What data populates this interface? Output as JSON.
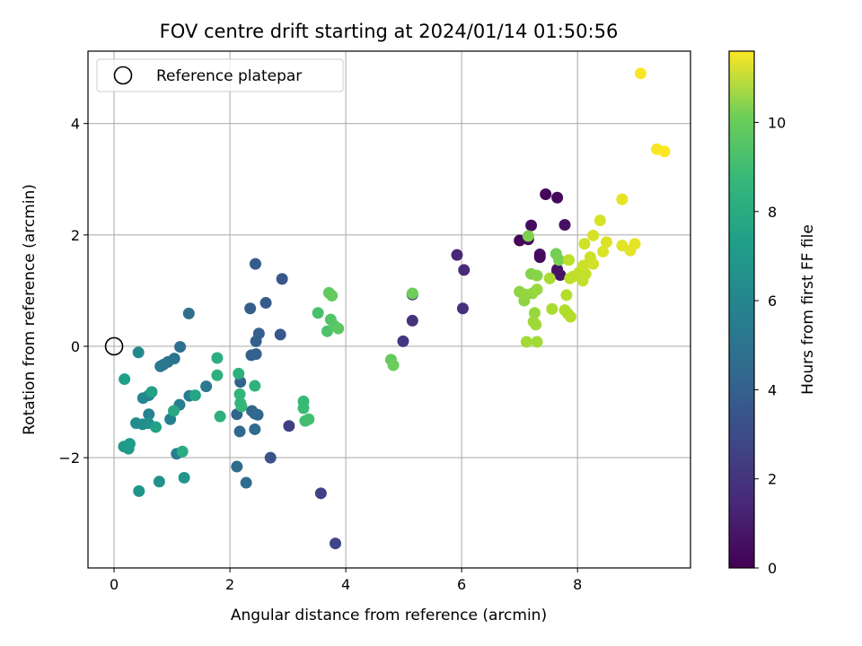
{
  "chart_data": {
    "type": "scatter",
    "title": "FOV centre drift starting at 2024/01/14 01:50:56",
    "xlabel": "Angular distance from reference (arcmin)",
    "ylabel": "Rotation from reference (arcmin)",
    "xlim": [
      -0.45,
      9.95
    ],
    "ylim": [
      -3.98,
      5.3
    ],
    "xticks": [
      0,
      2,
      4,
      6,
      8
    ],
    "yticks": [
      -2,
      0,
      2,
      4
    ],
    "xtick_labels": [
      "0",
      "2",
      "4",
      "6",
      "8"
    ],
    "ytick_labels": [
      "−2",
      "0",
      "2",
      "4"
    ],
    "grid": true,
    "legend": {
      "position": "top-left",
      "label": "Reference platepar"
    },
    "colorbar": {
      "label": "Hours from first FF file",
      "colormap": "viridis",
      "range": [
        0,
        11.6
      ],
      "ticks": [
        0,
        2,
        4,
        6,
        8,
        10
      ],
      "tick_labels": [
        "0",
        "2",
        "4",
        "6",
        "8",
        "10"
      ]
    },
    "reference_point": {
      "x": 0,
      "y": 0
    },
    "points": [
      {
        "x": 7.0,
        "y": 1.9,
        "c": 0.2
      },
      {
        "x": 7.15,
        "y": 1.92,
        "c": 0.3
      },
      {
        "x": 7.2,
        "y": 2.17,
        "c": 0.4
      },
      {
        "x": 7.35,
        "y": 1.65,
        "c": 0.5
      },
      {
        "x": 7.35,
        "y": 1.6,
        "c": 0.3
      },
      {
        "x": 7.45,
        "y": 2.73,
        "c": 0.2
      },
      {
        "x": 7.65,
        "y": 2.67,
        "c": 0.3
      },
      {
        "x": 7.78,
        "y": 2.18,
        "c": 0.5
      },
      {
        "x": 7.65,
        "y": 1.38,
        "c": 0.4
      },
      {
        "x": 7.7,
        "y": 1.28,
        "c": 0.6
      },
      {
        "x": 7.65,
        "y": 1.35,
        "c": 0.6
      },
      {
        "x": 5.92,
        "y": 1.64,
        "c": 1.3
      },
      {
        "x": 6.04,
        "y": 1.37,
        "c": 1.4
      },
      {
        "x": 6.02,
        "y": 0.68,
        "c": 1.6
      },
      {
        "x": 5.15,
        "y": 0.46,
        "c": 1.7
      },
      {
        "x": 5.15,
        "y": 0.93,
        "c": 1.8
      },
      {
        "x": 4.99,
        "y": 0.09,
        "c": 1.9
      },
      {
        "x": 3.02,
        "y": -1.43,
        "c": 2.2
      },
      {
        "x": 3.57,
        "y": -2.64,
        "c": 2.3
      },
      {
        "x": 3.82,
        "y": -3.54,
        "c": 2.4
      },
      {
        "x": 2.7,
        "y": -2.0,
        "c": 3.0
      },
      {
        "x": 2.9,
        "y": 1.21,
        "c": 3.1
      },
      {
        "x": 2.87,
        "y": 0.21,
        "c": 3.2
      },
      {
        "x": 2.44,
        "y": 1.48,
        "c": 3.3
      },
      {
        "x": 2.62,
        "y": 0.78,
        "c": 3.3
      },
      {
        "x": 2.35,
        "y": 0.68,
        "c": 3.4
      },
      {
        "x": 2.5,
        "y": 0.23,
        "c": 3.5
      },
      {
        "x": 2.45,
        "y": 0.09,
        "c": 3.5
      },
      {
        "x": 2.45,
        "y": -0.14,
        "c": 3.6
      },
      {
        "x": 2.37,
        "y": -0.16,
        "c": 3.6
      },
      {
        "x": 2.18,
        "y": -0.64,
        "c": 3.7
      },
      {
        "x": 2.12,
        "y": -1.22,
        "c": 3.7
      },
      {
        "x": 2.38,
        "y": -1.16,
        "c": 3.8
      },
      {
        "x": 2.48,
        "y": -1.23,
        "c": 3.8
      },
      {
        "x": 2.43,
        "y": -1.21,
        "c": 3.9
      },
      {
        "x": 2.17,
        "y": -1.53,
        "c": 3.9
      },
      {
        "x": 2.43,
        "y": -1.49,
        "c": 4.0
      },
      {
        "x": 2.12,
        "y": -2.16,
        "c": 4.0
      },
      {
        "x": 2.28,
        "y": -2.45,
        "c": 4.1
      },
      {
        "x": 1.29,
        "y": 0.59,
        "c": 4.2
      },
      {
        "x": 1.14,
        "y": -0.01,
        "c": 4.3
      },
      {
        "x": 1.04,
        "y": -0.22,
        "c": 4.4
      },
      {
        "x": 0.93,
        "y": -0.28,
        "c": 4.5
      },
      {
        "x": 0.85,
        "y": -0.33,
        "c": 4.6
      },
      {
        "x": 0.8,
        "y": -0.36,
        "c": 4.7
      },
      {
        "x": 1.59,
        "y": -0.72,
        "c": 4.7
      },
      {
        "x": 1.3,
        "y": -0.89,
        "c": 4.8
      },
      {
        "x": 1.13,
        "y": -1.05,
        "c": 4.9
      },
      {
        "x": 1.08,
        "y": -1.93,
        "c": 5.0
      },
      {
        "x": 0.97,
        "y": -1.31,
        "c": 5.1
      },
      {
        "x": 0.6,
        "y": -1.22,
        "c": 5.2
      },
      {
        "x": 0.6,
        "y": -0.88,
        "c": 5.3
      },
      {
        "x": 0.5,
        "y": -0.93,
        "c": 5.4
      },
      {
        "x": 0.42,
        "y": -0.11,
        "c": 5.5
      },
      {
        "x": 0.38,
        "y": -1.38,
        "c": 5.6
      },
      {
        "x": 0.49,
        "y": -1.4,
        "c": 5.7
      },
      {
        "x": 0.59,
        "y": -1.38,
        "c": 5.8
      },
      {
        "x": 0.78,
        "y": -2.43,
        "c": 5.9
      },
      {
        "x": 0.43,
        "y": -2.6,
        "c": 6.0
      },
      {
        "x": 1.21,
        "y": -2.36,
        "c": 6.1
      },
      {
        "x": 0.17,
        "y": -1.8,
        "c": 6.2
      },
      {
        "x": 0.25,
        "y": -1.84,
        "c": 6.3
      },
      {
        "x": 0.27,
        "y": -1.75,
        "c": 6.4
      },
      {
        "x": 0.18,
        "y": -0.59,
        "c": 6.5
      },
      {
        "x": 0.65,
        "y": -0.82,
        "c": 6.6
      },
      {
        "x": 0.72,
        "y": -1.45,
        "c": 6.6
      },
      {
        "x": 1.4,
        "y": -0.88,
        "c": 6.8
      },
      {
        "x": 1.03,
        "y": -1.16,
        "c": 7.0
      },
      {
        "x": 1.18,
        "y": -1.89,
        "c": 7.1
      },
      {
        "x": 1.78,
        "y": -0.21,
        "c": 7.2
      },
      {
        "x": 1.78,
        "y": -0.52,
        "c": 7.3
      },
      {
        "x": 1.83,
        "y": -1.26,
        "c": 7.3
      },
      {
        "x": 2.15,
        "y": -0.49,
        "c": 7.4
      },
      {
        "x": 2.43,
        "y": -0.71,
        "c": 7.5
      },
      {
        "x": 2.17,
        "y": -0.86,
        "c": 7.6
      },
      {
        "x": 2.18,
        "y": -1.02,
        "c": 7.6
      },
      {
        "x": 2.2,
        "y": -1.08,
        "c": 7.7
      },
      {
        "x": 3.27,
        "y": -0.99,
        "c": 7.8
      },
      {
        "x": 3.27,
        "y": -1.11,
        "c": 7.9
      },
      {
        "x": 3.3,
        "y": -1.34,
        "c": 8.0
      },
      {
        "x": 3.36,
        "y": -1.31,
        "c": 8.1
      },
      {
        "x": 3.52,
        "y": 0.6,
        "c": 8.2
      },
      {
        "x": 3.68,
        "y": 0.27,
        "c": 8.3
      },
      {
        "x": 3.74,
        "y": 0.48,
        "c": 8.4
      },
      {
        "x": 3.8,
        "y": 0.37,
        "c": 8.5
      },
      {
        "x": 3.87,
        "y": 0.32,
        "c": 8.6
      },
      {
        "x": 3.71,
        "y": 0.96,
        "c": 8.7
      },
      {
        "x": 3.76,
        "y": 0.91,
        "c": 8.8
      },
      {
        "x": 4.78,
        "y": -0.24,
        "c": 8.8
      },
      {
        "x": 4.82,
        "y": -0.34,
        "c": 8.9
      },
      {
        "x": 5.15,
        "y": 0.95,
        "c": 9.0
      },
      {
        "x": 7.63,
        "y": 1.66,
        "c": 9.1
      },
      {
        "x": 7.68,
        "y": 1.55,
        "c": 9.2
      },
      {
        "x": 7.15,
        "y": 1.98,
        "c": 9.3
      },
      {
        "x": 7.2,
        "y": 1.3,
        "c": 9.4
      },
      {
        "x": 7.3,
        "y": 1.27,
        "c": 9.5
      },
      {
        "x": 7.0,
        "y": 0.98,
        "c": 9.6
      },
      {
        "x": 7.08,
        "y": 0.82,
        "c": 9.6
      },
      {
        "x": 7.1,
        "y": 0.93,
        "c": 9.7
      },
      {
        "x": 7.22,
        "y": 0.95,
        "c": 9.7
      },
      {
        "x": 7.3,
        "y": 1.02,
        "c": 9.8
      },
      {
        "x": 7.26,
        "y": 0.6,
        "c": 9.8
      },
      {
        "x": 7.24,
        "y": 0.44,
        "c": 9.9
      },
      {
        "x": 7.28,
        "y": 0.39,
        "c": 9.9
      },
      {
        "x": 7.12,
        "y": 0.08,
        "c": 10.0
      },
      {
        "x": 7.3,
        "y": 0.08,
        "c": 10.0
      },
      {
        "x": 7.52,
        "y": 1.22,
        "c": 10.1
      },
      {
        "x": 7.56,
        "y": 0.67,
        "c": 10.1
      },
      {
        "x": 7.78,
        "y": 0.65,
        "c": 10.2
      },
      {
        "x": 7.83,
        "y": 0.59,
        "c": 10.2
      },
      {
        "x": 7.88,
        "y": 0.53,
        "c": 10.3
      },
      {
        "x": 7.81,
        "y": 0.92,
        "c": 10.3
      },
      {
        "x": 7.85,
        "y": 1.55,
        "c": 10.4
      },
      {
        "x": 7.87,
        "y": 1.22,
        "c": 10.4
      },
      {
        "x": 7.92,
        "y": 1.25,
        "c": 10.5
      },
      {
        "x": 8.03,
        "y": 1.33,
        "c": 10.5
      },
      {
        "x": 8.09,
        "y": 1.18,
        "c": 10.6
      },
      {
        "x": 8.14,
        "y": 1.3,
        "c": 10.6
      },
      {
        "x": 8.1,
        "y": 1.45,
        "c": 10.7
      },
      {
        "x": 8.22,
        "y": 1.6,
        "c": 10.7
      },
      {
        "x": 8.27,
        "y": 1.48,
        "c": 10.8
      },
      {
        "x": 8.12,
        "y": 1.84,
        "c": 10.8
      },
      {
        "x": 8.27,
        "y": 1.99,
        "c": 10.9
      },
      {
        "x": 8.39,
        "y": 2.26,
        "c": 10.9
      },
      {
        "x": 8.44,
        "y": 1.7,
        "c": 11.0
      },
      {
        "x": 8.5,
        "y": 1.87,
        "c": 11.0
      },
      {
        "x": 8.77,
        "y": 1.81,
        "c": 11.1
      },
      {
        "x": 8.91,
        "y": 1.72,
        "c": 11.1
      },
      {
        "x": 8.99,
        "y": 1.84,
        "c": 11.2
      },
      {
        "x": 8.77,
        "y": 2.64,
        "c": 11.2
      },
      {
        "x": 9.09,
        "y": 4.9,
        "c": 11.5
      },
      {
        "x": 9.37,
        "y": 3.54,
        "c": 11.5
      },
      {
        "x": 9.5,
        "y": 3.5,
        "c": 11.6
      }
    ]
  }
}
